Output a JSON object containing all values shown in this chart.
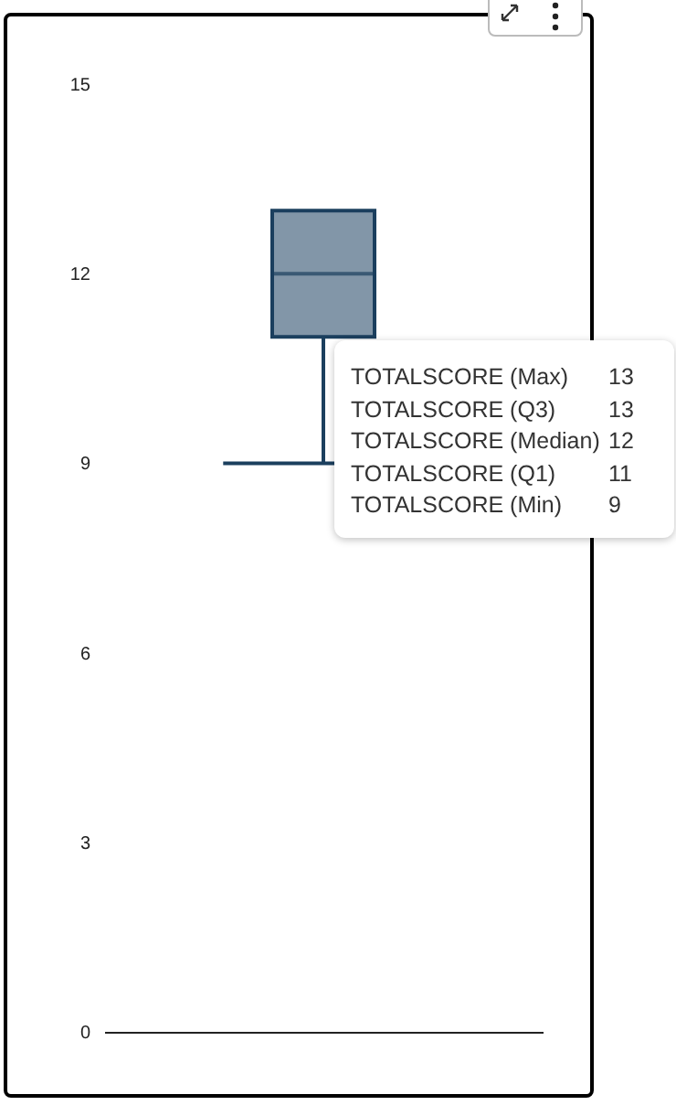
{
  "chart_data": {
    "type": "box",
    "categories": [
      null
    ],
    "boxes": [
      {
        "low": 9,
        "q1": 11,
        "median": 12,
        "q3": 13,
        "high": 13
      }
    ],
    "color": "#8296a8",
    "ylim": [
      0,
      15
    ],
    "yticks": [
      0,
      3,
      6,
      9,
      12,
      15
    ],
    "grid": false,
    "tick_labels": "y",
    "annotations": [
      "TOTALSCORE (Max) 13",
      "TOTALSCORE (Q3) 13",
      "TOTALSCORE (Median) 12",
      "TOTALSCORE (Q1) 11",
      "TOTALSCORE (Min) 9"
    ]
  }
}
